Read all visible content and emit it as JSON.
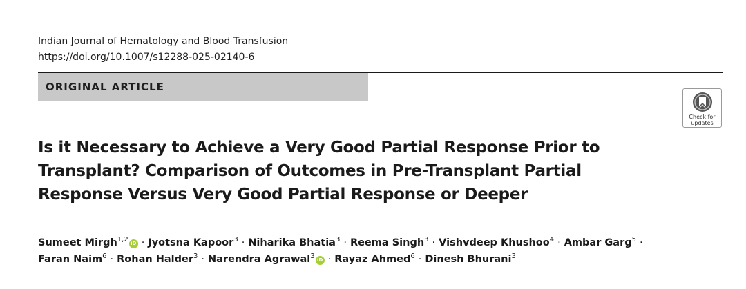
{
  "header": {
    "journal": "Indian Journal of Hematology and Blood Transfusion",
    "doi": "https://doi.org/10.1007/s12288-025-02140-6"
  },
  "article_type": "ORIGINAL ARTICLE",
  "check_updates": {
    "line1": "Check for",
    "line2": "updates",
    "icon": "crossmark-icon"
  },
  "title": {
    "line1": "Is it Necessary to Achieve a Very Good Partial Response Prior to",
    "line2": "Transplant? Comparison of Outcomes in Pre-Transplant Partial",
    "line3": "Response Versus Very Good Partial Response or Deeper"
  },
  "authors": [
    {
      "name": "Sumeet Mirgh",
      "aff": "1,2",
      "orcid": true
    },
    {
      "name": "Jyotsna Kapoor",
      "aff": "3",
      "orcid": false
    },
    {
      "name": "Niharika Bhatia",
      "aff": "3",
      "orcid": false
    },
    {
      "name": "Reema Singh",
      "aff": "3",
      "orcid": false
    },
    {
      "name": "Vishvdeep Khushoo",
      "aff": "4",
      "orcid": false
    },
    {
      "name": "Ambar Garg",
      "aff": "5",
      "orcid": false
    },
    {
      "name": "Faran Naim",
      "aff": "6",
      "orcid": false
    },
    {
      "name": "Rohan Halder",
      "aff": "3",
      "orcid": false
    },
    {
      "name": "Narendra Agrawal",
      "aff": "3",
      "orcid": true
    },
    {
      "name": "Rayaz Ahmed",
      "aff": "6",
      "orcid": false
    },
    {
      "name": "Dinesh Bhurani",
      "aff": "3",
      "orcid": false
    }
  ],
  "separator": "·",
  "orcid_label": "iD",
  "colors": {
    "orcid": "#a6ce39",
    "article_type_bg": "#c8c8c8"
  }
}
